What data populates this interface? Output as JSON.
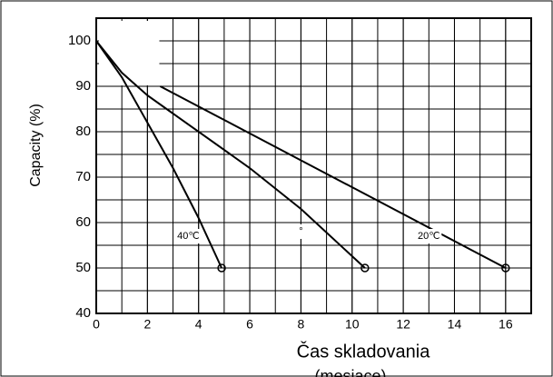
{
  "chart_data": {
    "type": "line",
    "y_label": "Capacity (%)",
    "x_label": "Čas skladovania",
    "x_label_sub": "(mesiace)",
    "xlim": [
      0,
      17
    ],
    "ylim": [
      40,
      105
    ],
    "xticks": [
      0,
      2,
      4,
      6,
      8,
      10,
      12,
      14,
      16
    ],
    "yticks": [
      40,
      50,
      60,
      70,
      80,
      90,
      100
    ],
    "grid": true,
    "series": [
      {
        "name": "40℃",
        "color": "#000000",
        "x": [
          0,
          1,
          2,
          3,
          4,
          4.9
        ],
        "values": [
          100,
          92,
          82,
          72,
          61,
          50
        ]
      },
      {
        "name": "°",
        "color": "#000000",
        "x": [
          0,
          1,
          2,
          3,
          6,
          8,
          10.5
        ],
        "values": [
          100,
          93,
          88,
          84,
          72,
          63,
          50
        ]
      },
      {
        "name": "20℃",
        "color": "#000000",
        "x": [
          2.5,
          16
        ],
        "values": [
          90,
          50
        ]
      }
    ],
    "annotations": [
      {
        "text": "40℃",
        "x": 3.6,
        "y": 57
      },
      {
        "text": "°",
        "x": 8,
        "y": 58
      },
      {
        "text": "20℃",
        "x": 13,
        "y": 57
      }
    ]
  }
}
